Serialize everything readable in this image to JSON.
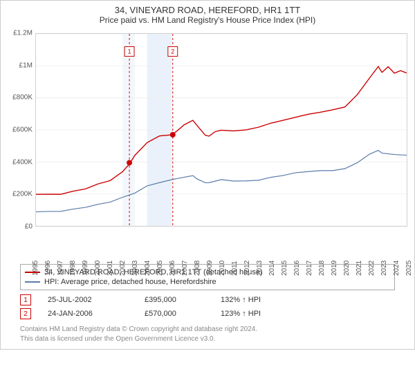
{
  "titles": {
    "main": "34, VINEYARD ROAD, HEREFORD, HR1 1TT",
    "sub": "Price paid vs. HM Land Registry's House Price Index (HPI)"
  },
  "chart": {
    "type": "line",
    "background_color": "#ffffff",
    "grid_color": "#f0f0f0",
    "axis_color": "#d0d0d0",
    "label_color": "#555555",
    "label_fontsize": 10,
    "xlim": [
      1995,
      2025
    ],
    "ylim": [
      0,
      1200000
    ],
    "yticks": [
      {
        "v": 0,
        "label": "£0"
      },
      {
        "v": 200000,
        "label": "£200K"
      },
      {
        "v": 400000,
        "label": "£400K"
      },
      {
        "v": 600000,
        "label": "£600K"
      },
      {
        "v": 800000,
        "label": "£800K"
      },
      {
        "v": 1000000,
        "label": "£1M"
      },
      {
        "v": 1200000,
        "label": "£1.2M"
      }
    ],
    "xticks": [
      1995,
      1996,
      1997,
      1998,
      1999,
      2000,
      2001,
      2002,
      2003,
      2004,
      2005,
      2006,
      2007,
      2008,
      2009,
      2010,
      2011,
      2012,
      2013,
      2014,
      2015,
      2016,
      2017,
      2018,
      2019,
      2020,
      2021,
      2022,
      2023,
      2024,
      2025
    ],
    "x_shade_bands": [
      {
        "from": 2002,
        "to": 2003,
        "color": "#f3f7fc"
      },
      {
        "from": 2004,
        "to": 2006,
        "color": "#eaf1fa"
      }
    ],
    "vlines": [
      {
        "x": 2002.56,
        "color": "#cc0000",
        "dash": "3,3",
        "width": 1,
        "marker_label": "1",
        "marker_y": 1090000
      },
      {
        "x": 2006.07,
        "color": "#cc0000",
        "dash": "3,3",
        "width": 1,
        "marker_label": "2",
        "marker_y": 1090000
      }
    ],
    "sale_points": [
      {
        "x": 2002.56,
        "y": 395000,
        "color": "#cc0000",
        "radius": 4
      },
      {
        "x": 2006.07,
        "y": 570000,
        "color": "#cc0000",
        "radius": 4
      }
    ],
    "series": [
      {
        "name": "subject_property",
        "color": "#cc0000",
        "width": 1.4,
        "points": [
          [
            1995,
            200000
          ],
          [
            1996,
            200000
          ],
          [
            1997,
            205000
          ],
          [
            1998,
            215000
          ],
          [
            1999,
            230000
          ],
          [
            2000,
            255000
          ],
          [
            2001,
            285000
          ],
          [
            2002,
            340000
          ],
          [
            2002.56,
            395000
          ],
          [
            2003,
            440000
          ],
          [
            2004,
            520000
          ],
          [
            2005,
            555000
          ],
          [
            2006,
            570000
          ],
          [
            2006.5,
            600000
          ],
          [
            2007,
            640000
          ],
          [
            2007.7,
            660000
          ],
          [
            2008,
            630000
          ],
          [
            2008.7,
            560000
          ],
          [
            2009,
            560000
          ],
          [
            2009.5,
            590000
          ],
          [
            2010,
            605000
          ],
          [
            2011,
            595000
          ],
          [
            2012,
            600000
          ],
          [
            2013,
            610000
          ],
          [
            2014,
            640000
          ],
          [
            2015,
            660000
          ],
          [
            2016,
            685000
          ],
          [
            2017,
            700000
          ],
          [
            2018,
            710000
          ],
          [
            2019,
            720000
          ],
          [
            2020,
            740000
          ],
          [
            2021,
            820000
          ],
          [
            2022,
            930000
          ],
          [
            2022.7,
            1000000
          ],
          [
            2023,
            960000
          ],
          [
            2023.5,
            990000
          ],
          [
            2024,
            950000
          ],
          [
            2024.5,
            970000
          ],
          [
            2025,
            960000
          ]
        ]
      },
      {
        "name": "hpi_detached_herefordshire",
        "color": "#5b7ba9",
        "width": 1.2,
        "points": [
          [
            1995,
            90000
          ],
          [
            1996,
            92000
          ],
          [
            1997,
            96000
          ],
          [
            1998,
            104000
          ],
          [
            1999,
            115000
          ],
          [
            2000,
            130000
          ],
          [
            2001,
            150000
          ],
          [
            2002,
            180000
          ],
          [
            2003,
            210000
          ],
          [
            2004,
            250000
          ],
          [
            2005,
            270000
          ],
          [
            2006,
            285000
          ],
          [
            2007,
            305000
          ],
          [
            2007.7,
            315000
          ],
          [
            2008,
            300000
          ],
          [
            2008.7,
            270000
          ],
          [
            2009,
            270000
          ],
          [
            2010,
            285000
          ],
          [
            2011,
            280000
          ],
          [
            2012,
            282000
          ],
          [
            2013,
            290000
          ],
          [
            2014,
            305000
          ],
          [
            2015,
            315000
          ],
          [
            2016,
            328000
          ],
          [
            2017,
            338000
          ],
          [
            2018,
            346000
          ],
          [
            2019,
            350000
          ],
          [
            2020,
            360000
          ],
          [
            2021,
            395000
          ],
          [
            2022,
            445000
          ],
          [
            2022.7,
            470000
          ],
          [
            2023,
            455000
          ],
          [
            2024,
            450000
          ],
          [
            2025,
            445000
          ]
        ]
      }
    ]
  },
  "legend": {
    "items": [
      {
        "color": "#cc0000",
        "label": "34, VINEYARD ROAD, HEREFORD, HR1 1TT (detached house)"
      },
      {
        "color": "#5b7ba9",
        "label": "HPI: Average price, detached house, Herefordshire"
      }
    ]
  },
  "sales": [
    {
      "marker": "1",
      "date": "25-JUL-2002",
      "price": "£395,000",
      "pct": "132% ↑ HPI"
    },
    {
      "marker": "2",
      "date": "24-JAN-2006",
      "price": "£570,000",
      "pct": "123% ↑ HPI"
    }
  ],
  "footer": {
    "line1": "Contains HM Land Registry data © Crown copyright and database right 2024.",
    "line2": "This data is licensed under the Open Government Licence v3.0."
  }
}
